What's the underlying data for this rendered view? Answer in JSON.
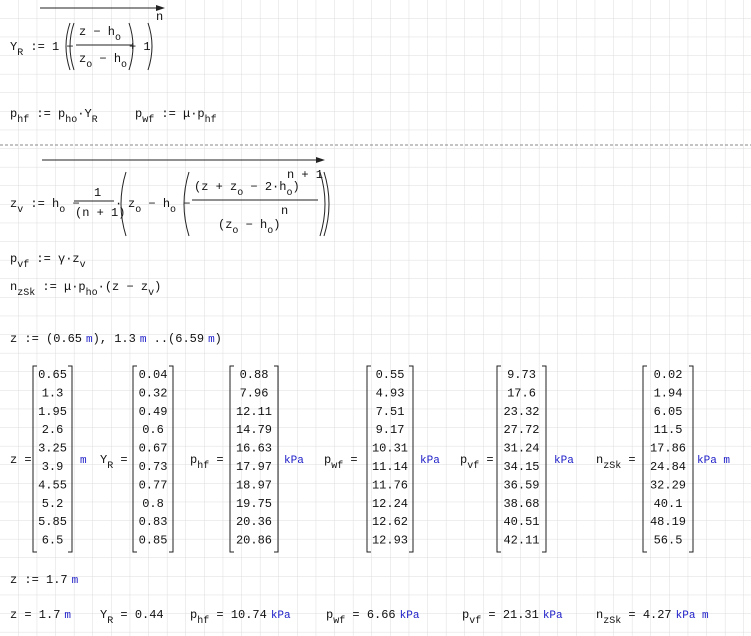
{
  "formulas": {
    "y_r": {
      "left": [
        {
          "t": "Y"
        },
        {
          "t": "R",
          "s": "sub"
        },
        {
          "t": " := 1 −"
        }
      ],
      "num": [
        {
          "t": "z − h"
        },
        {
          "t": "o",
          "s": "sub"
        }
      ],
      "den": [
        {
          "t": "z"
        },
        {
          "t": "o",
          "s": "sub"
        },
        {
          "t": " − h"
        },
        {
          "t": "o",
          "s": "sub"
        }
      ],
      "right": [
        {
          "t": "+ 1"
        }
      ],
      "exp": "n"
    },
    "p_hf": [
      {
        "t": "p"
      },
      {
        "t": "hf",
        "s": "sub"
      },
      {
        "t": " := p"
      },
      {
        "t": "ho",
        "s": "sub"
      },
      {
        "t": "·Y"
      },
      {
        "t": "R",
        "s": "sub"
      }
    ],
    "p_wf": [
      {
        "t": "p"
      },
      {
        "t": "wf",
        "s": "sub"
      },
      {
        "t": " := μ·p"
      },
      {
        "t": "hf",
        "s": "sub"
      }
    ],
    "z_v": {
      "left": [
        {
          "t": "z"
        },
        {
          "t": "v",
          "s": "sub"
        },
        {
          "t": " := h"
        },
        {
          "t": "o",
          "s": "sub"
        },
        {
          "t": " −"
        }
      ],
      "frac_num": "1",
      "frac_den": "(n + 1)",
      "mid": "·",
      "inner": [
        {
          "t": "z"
        },
        {
          "t": "o",
          "s": "sub"
        },
        {
          "t": " − h"
        },
        {
          "t": "o",
          "s": "sub"
        },
        {
          "t": " −"
        }
      ],
      "num": [
        {
          "t": "(z + z"
        },
        {
          "t": "o",
          "s": "sub"
        },
        {
          "t": " − 2·h"
        },
        {
          "t": "o",
          "s": "sub"
        },
        {
          "t": ")"
        }
      ],
      "num_exp": "n + 1",
      "den": [
        {
          "t": "(z"
        },
        {
          "t": "o",
          "s": "sub"
        },
        {
          "t": " − h"
        },
        {
          "t": "o",
          "s": "sub"
        },
        {
          "t": ")"
        }
      ],
      "den_exp": "n"
    },
    "p_vf": [
      {
        "t": "p"
      },
      {
        "t": "vf",
        "s": "sub"
      },
      {
        "t": " := γ·z"
      },
      {
        "t": "v",
        "s": "sub"
      }
    ],
    "n_zsk": [
      {
        "t": "n"
      },
      {
        "t": "zSk",
        "s": "sub"
      },
      {
        "t": " := μ·p"
      },
      {
        "t": "ho",
        "s": "sub"
      },
      {
        "t": "·(z − z"
      },
      {
        "t": "v",
        "s": "sub"
      },
      {
        "t": ")"
      }
    ],
    "range": [
      {
        "t": "z := (0.65"
      },
      {
        "t": "m",
        "s": "unit"
      },
      {
        "t": "), 1.3"
      },
      {
        "t": "m",
        "s": "unit"
      },
      {
        "t": " ..(6.59"
      },
      {
        "t": "m",
        "s": "unit"
      },
      {
        "t": ")"
      }
    ]
  },
  "matrices": [
    {
      "label": [
        {
          "t": "z ="
        }
      ],
      "values": [
        "0.65",
        "1.3",
        "1.95",
        "2.6",
        "3.25",
        "3.9",
        "4.55",
        "5.2",
        "5.85",
        "6.5"
      ],
      "unit": "m"
    },
    {
      "label": [
        {
          "t": "Y"
        },
        {
          "t": "R",
          "s": "sub"
        },
        {
          "t": " ="
        }
      ],
      "values": [
        "0.04",
        "0.32",
        "0.49",
        "0.6",
        "0.67",
        "0.73",
        "0.77",
        "0.8",
        "0.83",
        "0.85"
      ]
    },
    {
      "label": [
        {
          "t": "p"
        },
        {
          "t": "hf",
          "s": "sub"
        },
        {
          "t": " ="
        }
      ],
      "values": [
        "0.88",
        "7.96",
        "12.11",
        "14.79",
        "16.63",
        "17.97",
        "18.97",
        "19.75",
        "20.36",
        "20.86"
      ],
      "unit": "kPa"
    },
    {
      "label": [
        {
          "t": "p"
        },
        {
          "t": "wf",
          "s": "sub"
        },
        {
          "t": " ="
        }
      ],
      "values": [
        "0.55",
        "4.93",
        "7.51",
        "9.17",
        "10.31",
        "11.14",
        "11.76",
        "12.24",
        "12.62",
        "12.93"
      ],
      "unit": "kPa"
    },
    {
      "label": [
        {
          "t": "p"
        },
        {
          "t": "vf",
          "s": "sub"
        },
        {
          "t": " ="
        }
      ],
      "values": [
        "9.73",
        "17.6",
        "23.32",
        "27.72",
        "31.24",
        "34.15",
        "36.59",
        "38.68",
        "40.51",
        "42.11"
      ],
      "unit": "kPa"
    },
    {
      "label": [
        {
          "t": "n"
        },
        {
          "t": "zSk",
          "s": "sub"
        },
        {
          "t": " ="
        }
      ],
      "values": [
        "0.02",
        "1.94",
        "6.05",
        "11.5",
        "17.86",
        "24.84",
        "32.29",
        "40.1",
        "48.19",
        "56.5"
      ],
      "unit": "kPa m"
    }
  ],
  "z_set": [
    {
      "t": "z := 1.7"
    },
    {
      "t": "m",
      "s": "unit"
    }
  ],
  "results": [
    [
      {
        "t": "z = 1.7"
      },
      {
        "t": "m",
        "s": "unit"
      }
    ],
    [
      {
        "t": "Y"
      },
      {
        "t": "R",
        "s": "sub"
      },
      {
        "t": " = 0.44"
      }
    ],
    [
      {
        "t": "p"
      },
      {
        "t": "hf",
        "s": "sub"
      },
      {
        "t": " = 10.74"
      },
      {
        "t": "kPa",
        "s": "unit"
      }
    ],
    [
      {
        "t": "p"
      },
      {
        "t": "wf",
        "s": "sub"
      },
      {
        "t": " = 6.66"
      },
      {
        "t": "kPa",
        "s": "unit"
      }
    ],
    [
      {
        "t": "p"
      },
      {
        "t": "vf",
        "s": "sub"
      },
      {
        "t": " = 21.31"
      },
      {
        "t": "kPa",
        "s": "unit"
      }
    ],
    [
      {
        "t": "n"
      },
      {
        "t": "zSk",
        "s": "sub"
      },
      {
        "t": " = 4.27"
      },
      {
        "t": "kPa m",
        "s": "unit"
      }
    ]
  ]
}
